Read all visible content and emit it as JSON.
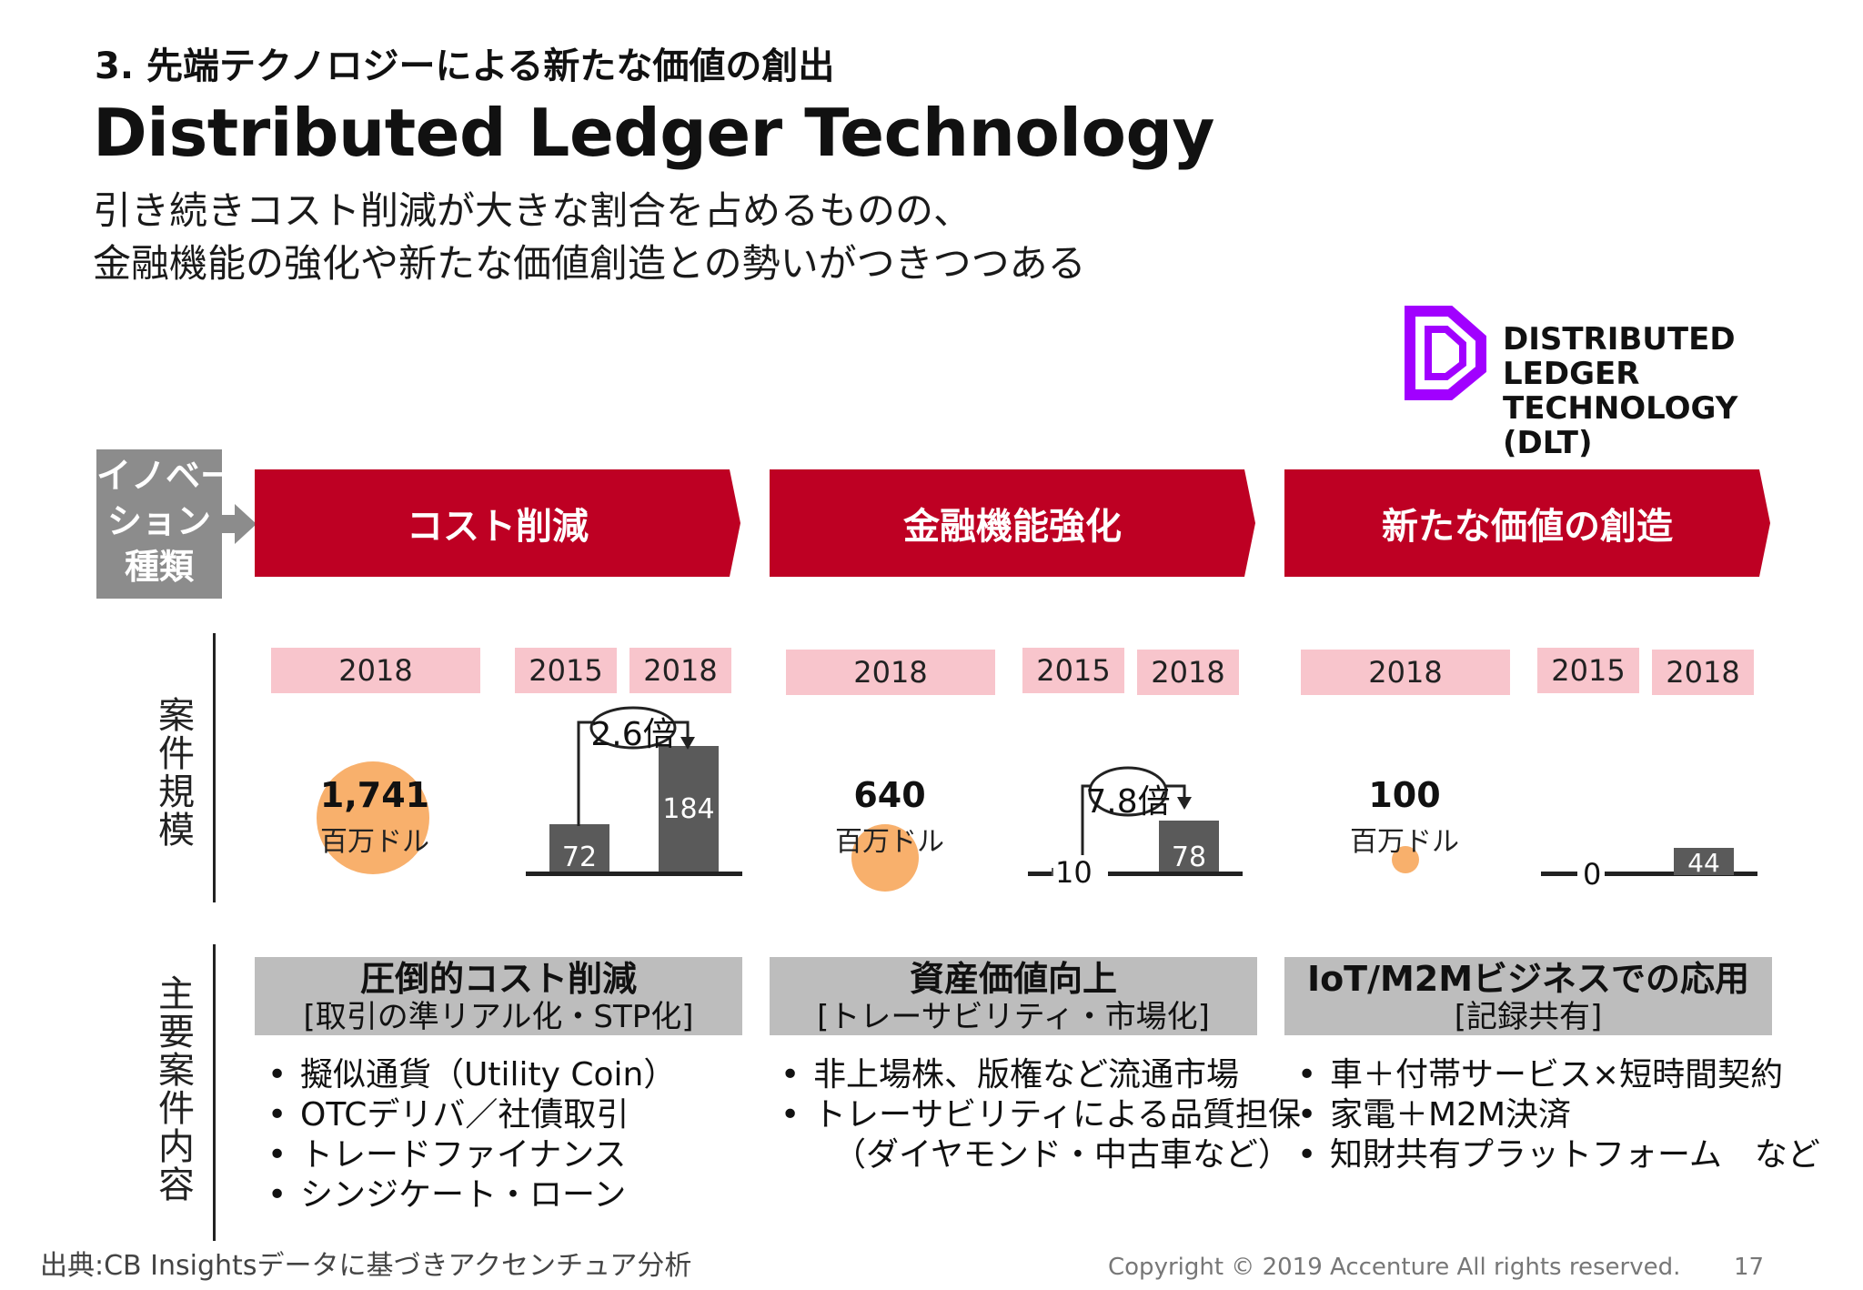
{
  "header": {
    "section_label": "3. 先端テクノロジーによる新たな価値の創出",
    "title": "Distributed Ledger Technology",
    "subtitle_line1": "引き続きコスト削減が大きな割合を占めるものの、",
    "subtitle_line2": "金融機能の強化や新たな価値創造との勢いがつきつつある"
  },
  "logo": {
    "icon": "dlt-d-logo-icon",
    "line1": "DISTRIBUTED",
    "line2": "LEDGER",
    "line3": "TECHNOLOGY",
    "line4": "(DLT)"
  },
  "row_labels": {
    "innovation_line1": "イノベー",
    "innovation_line2": "ション",
    "innovation_line3": "種類",
    "deal_size_chars": [
      "案",
      "件",
      "規",
      "模"
    ],
    "main_content_chars": [
      "主",
      "要",
      "案",
      "件",
      "内",
      "容"
    ]
  },
  "columns": [
    {
      "category": "コスト削減",
      "year_single": "2018",
      "year_from": "2015",
      "year_to": "2018",
      "total": "1,741",
      "unit": "百万ドル",
      "bar_from": "72",
      "bar_to": "184",
      "multiplier": "2.6倍",
      "sub_title": "圧倒的コスト削減",
      "sub_detail": "[取引の準リアル化・STP化]",
      "bullets": [
        "擬似通貨（Utility Coin）",
        "OTCデリバ／社債取引",
        "トレードファイナンス",
        "シンジケート・ローン"
      ]
    },
    {
      "category": "金融機能強化",
      "year_single": "2018",
      "year_from": "2015",
      "year_to": "2018",
      "total": "640",
      "unit": "百万ドル",
      "bar_from": "10",
      "bar_to": "78",
      "multiplier": "7.8倍",
      "sub_title": "資産価値向上",
      "sub_detail": "[トレーサビリティ・市場化]",
      "bullets": [
        "非上場株、版権など流通市場",
        "トレーサビリティによる品質担保"
      ],
      "bullet_continuation": "（ダイヤモンド・中古車など）"
    },
    {
      "category": "新たな価値の創造",
      "year_single": "2018",
      "year_from": "2015",
      "year_to": "2018",
      "total": "100",
      "unit": "百万ドル",
      "bar_from": "0",
      "bar_to": "44",
      "sub_title": "IoT/M2Mビジネスでの応用",
      "sub_detail": "[記録共有]",
      "bullets": [
        "車＋付帯サービス×短時間契約",
        "家電＋M2M決済",
        "知財共有プラットフォーム　など"
      ]
    }
  ],
  "chart_data": [
    {
      "type": "bar",
      "categories": [
        "2015",
        "2018"
      ],
      "values": [
        72,
        184
      ],
      "annotation": "2.6倍"
    },
    {
      "type": "bar",
      "categories": [
        "2015",
        "2018"
      ],
      "values": [
        10,
        78
      ],
      "annotation": "7.8倍"
    },
    {
      "type": "bar",
      "categories": [
        "2015",
        "2018"
      ],
      "values": [
        0,
        44
      ]
    }
  ],
  "footer": {
    "source": "出典:CB Insightsデータに基づきアクセンチュア分析",
    "copyright": "Copyright © 2019 Accenture  All rights reserved.",
    "page": "17"
  },
  "colors": {
    "banner_red": "#be0023",
    "year_pink": "#f8c5cc",
    "circle_orange": "#f8b06c",
    "bar_gray": "#5a5a5a",
    "label_gray": "#8c8c8c",
    "subhead_gray": "#bdbdbd",
    "logo_purple": "#a100ff"
  }
}
